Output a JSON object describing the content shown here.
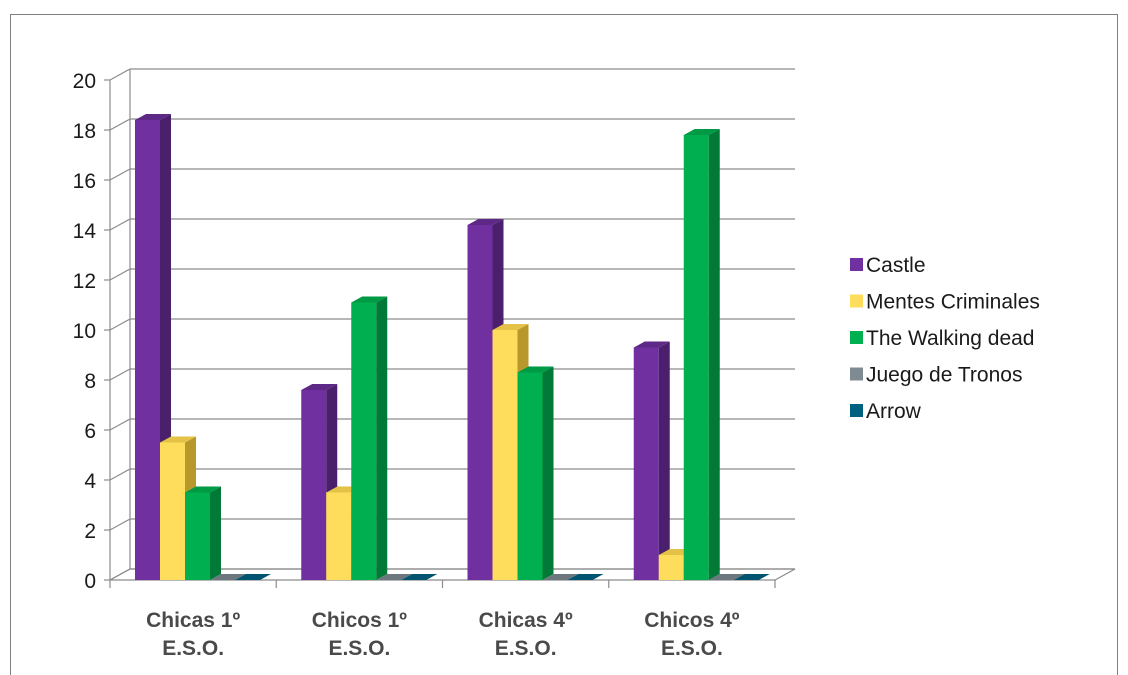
{
  "chart_data": {
    "type": "bar",
    "categories": [
      "Chicas 1º E.S.O.",
      "Chicos 1º E.S.O.",
      "Chicas 4º E.S.O.",
      "Chicos 4º E.S.O."
    ],
    "category_lines": [
      [
        "Chicas 1º",
        "E.S.O."
      ],
      [
        "Chicos 1º",
        "E.S.O."
      ],
      [
        "Chicas 4º",
        "E.S.O."
      ],
      [
        "Chicos 4º",
        "E.S.O."
      ]
    ],
    "series": [
      {
        "name": "Castle",
        "values": [
          18.4,
          7.6,
          14.2,
          9.3
        ],
        "color": "#7030a0",
        "side": "#4a1f6b",
        "top": "#5e2887"
      },
      {
        "name": "Mentes Criminales",
        "values": [
          5.5,
          3.5,
          10,
          1
        ],
        "color": "#ffdd5c",
        "side": "#b8982a",
        "top": "#e3c247"
      },
      {
        "name": "The Walking dead",
        "values": [
          3.5,
          11.1,
          8.3,
          17.8
        ],
        "color": "#00b050",
        "side": "#007a36",
        "top": "#009a45"
      },
      {
        "name": "Juego de Tronos",
        "values": [
          0,
          0,
          0,
          0
        ],
        "color": "#7f8b93",
        "side": "#5a656c",
        "top": "#6c777e"
      },
      {
        "name": "Arrow",
        "values": [
          0,
          0,
          0,
          0
        ],
        "color": "#00607f",
        "side": "#00465d",
        "top": "#005470"
      }
    ],
    "yticks": [
      0,
      2,
      4,
      6,
      8,
      10,
      12,
      14,
      16,
      18,
      20
    ],
    "ylim": [
      0,
      20
    ],
    "grid": true,
    "legend": "right",
    "title": "",
    "xlabel": "",
    "ylabel": ""
  }
}
